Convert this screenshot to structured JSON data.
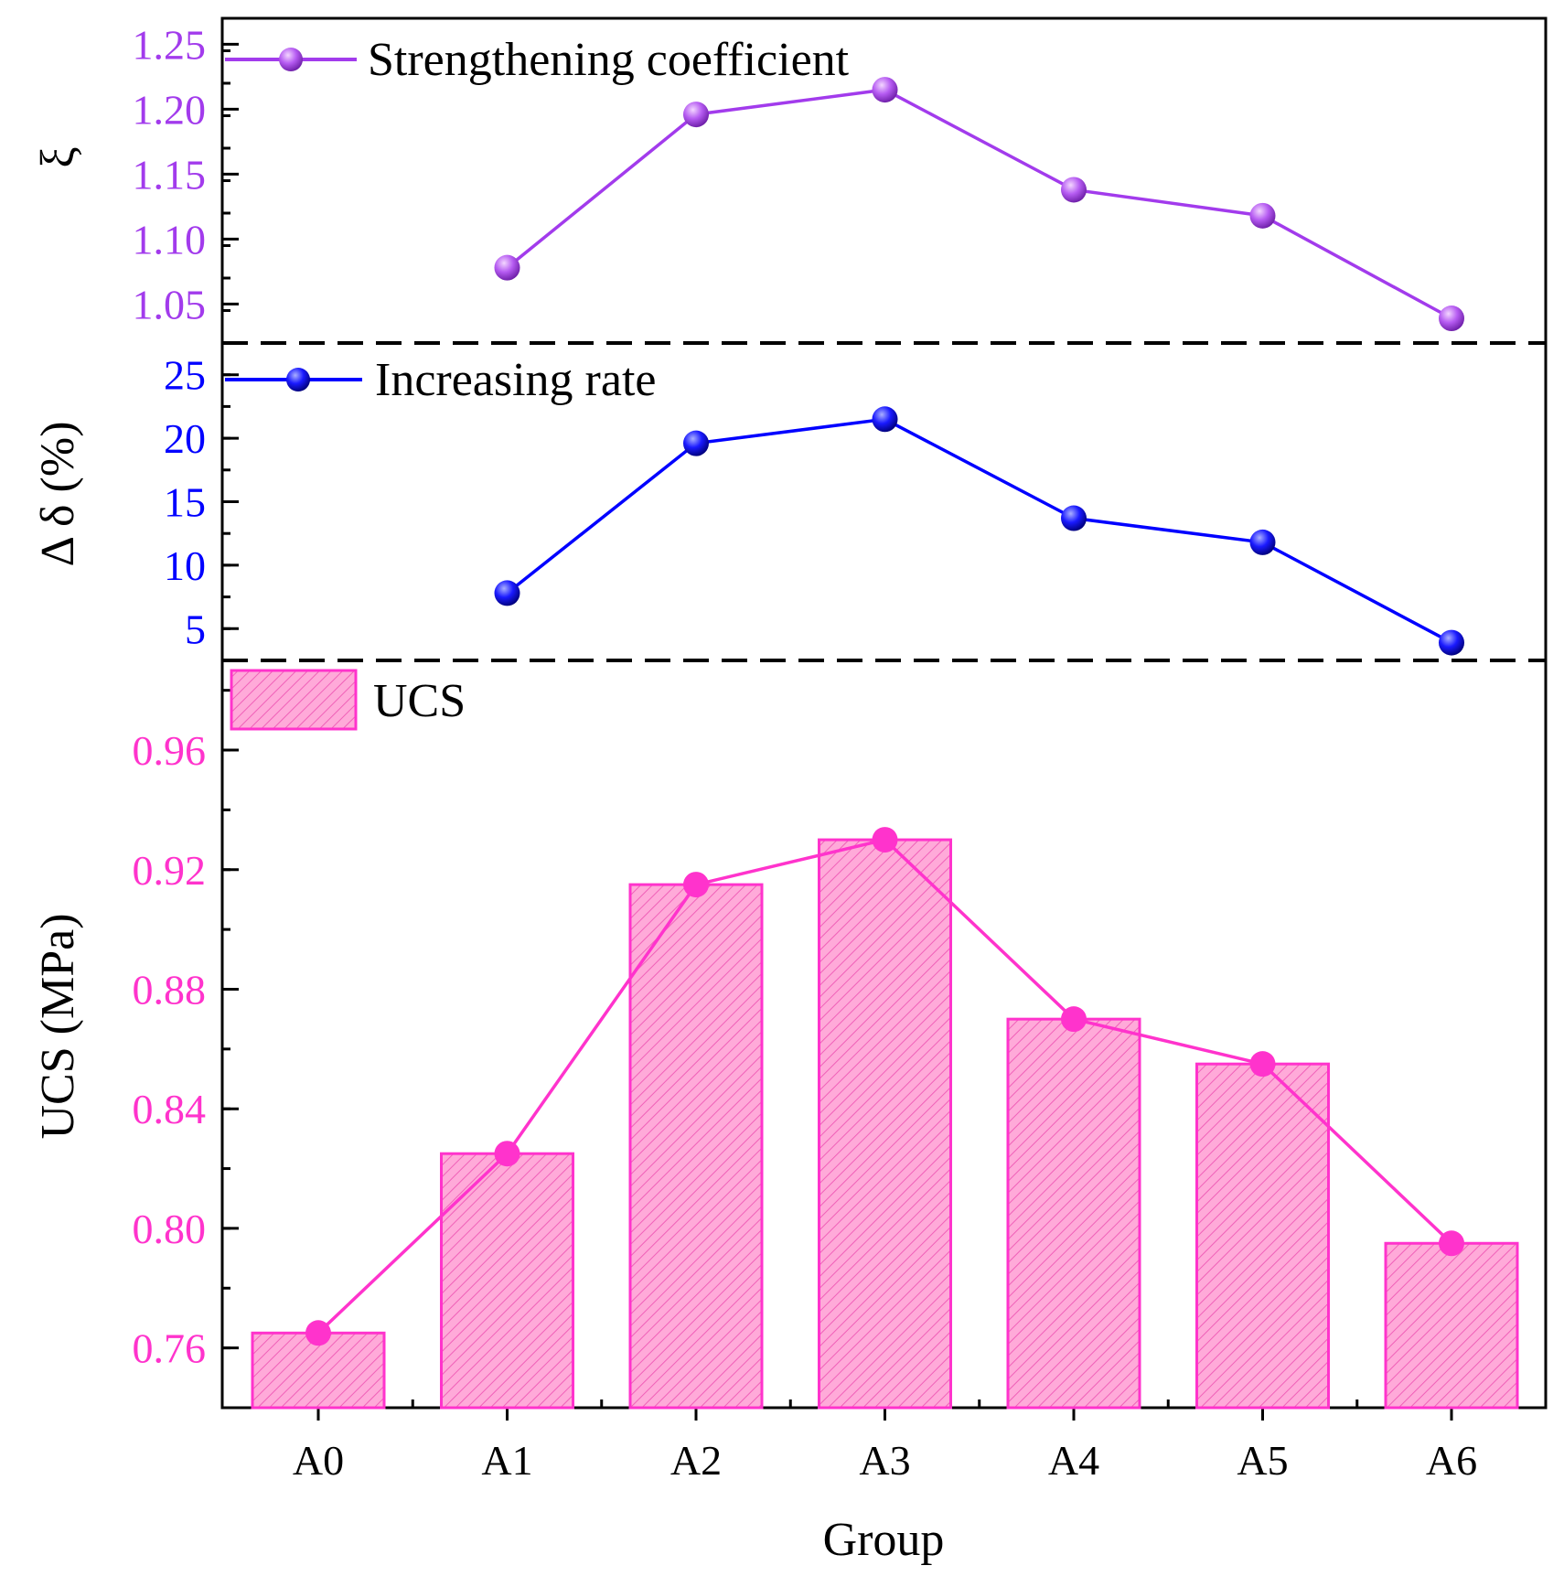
{
  "chart_data": {
    "type": "bar+line (stacked panels)",
    "categories": [
      "A0",
      "A1",
      "A2",
      "A3",
      "A4",
      "A5",
      "A6"
    ],
    "xlabel": "Group",
    "panels": [
      {
        "id": "xi",
        "ylabel": "ξ",
        "ylim": [
          1.02,
          1.27
        ],
        "ticks": [
          "1.05",
          "1.10",
          "1.15",
          "1.20",
          "1.25"
        ],
        "tick_values": [
          1.05,
          1.1,
          1.15,
          1.2,
          1.25
        ],
        "minor_step": 0.025,
        "color": "#a23bec",
        "series": [
          {
            "name": "Strengthening coefficient",
            "type": "line",
            "values": [
              null,
              1.078,
              1.196,
              1.215,
              1.138,
              1.118,
              1.039
            ]
          }
        ]
      },
      {
        "id": "delta",
        "ylabel": "Δ δ (%)",
        "ylim": [
          2.5,
          27.5
        ],
        "ticks": [
          "5",
          "10",
          "15",
          "20",
          "25"
        ],
        "tick_values": [
          5,
          10,
          15,
          20,
          25
        ],
        "minor_step": 2.5,
        "color": "#0000ff",
        "series": [
          {
            "name": "Increasing rate",
            "type": "line",
            "values": [
              null,
              7.8,
              19.6,
              21.5,
              13.7,
              11.8,
              3.9
            ]
          }
        ]
      },
      {
        "id": "ucs",
        "ylabel": "UCS (MPa)",
        "ylim": [
          0.74,
          0.99
        ],
        "ticks": [
          "0.76",
          "0.80",
          "0.84",
          "0.88",
          "0.92",
          "0.96"
        ],
        "tick_values": [
          0.76,
          0.8,
          0.84,
          0.88,
          0.92,
          0.96
        ],
        "minor_step": 0.02,
        "color": "#ff33cc",
        "series": [
          {
            "name": "UCS",
            "type": "bar",
            "values": [
              0.765,
              0.825,
              0.915,
              0.93,
              0.87,
              0.855,
              0.795
            ]
          },
          {
            "name": "UCS",
            "type": "line",
            "in_legend": false,
            "values": [
              0.765,
              0.825,
              0.915,
              0.93,
              0.87,
              0.855,
              0.795
            ]
          }
        ]
      }
    ]
  }
}
